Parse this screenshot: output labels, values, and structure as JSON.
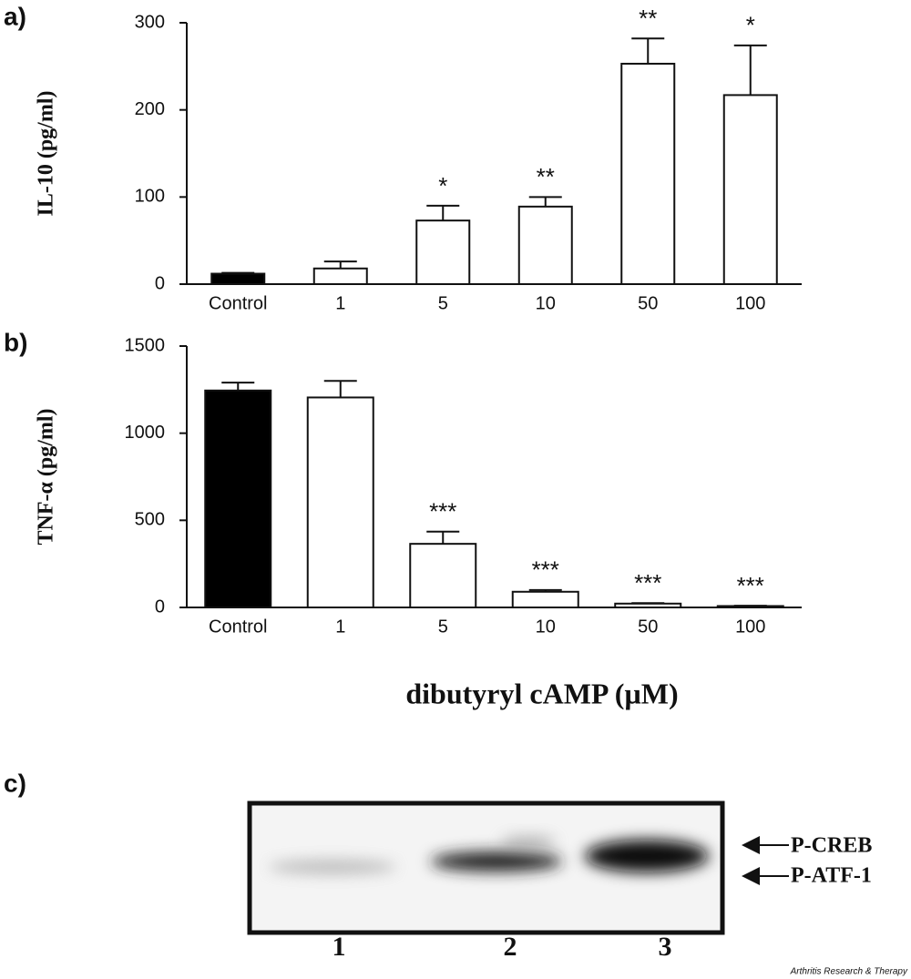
{
  "chart_data": [
    {
      "type": "bar",
      "panel_label": "a)",
      "ylabel": "IL-10 (pg/ml)",
      "categories": [
        "Control",
        "1",
        "5",
        "10",
        "50",
        "100"
      ],
      "values": [
        12,
        18,
        73,
        89,
        253,
        217
      ],
      "errors": [
        1,
        8,
        17,
        11,
        29,
        57
      ],
      "colors": [
        "#000000",
        "#ffffff",
        "#ffffff",
        "#ffffff",
        "#ffffff",
        "#ffffff"
      ],
      "annotations": [
        null,
        null,
        "*",
        "**",
        "**",
        "*"
      ],
      "ylim": [
        0,
        300
      ],
      "yticks": [
        0,
        100,
        200,
        300
      ]
    },
    {
      "type": "bar",
      "panel_label": "b)",
      "ylabel": "TNF-α (pg/ml)",
      "xlabel": "dibutyryl cAMP (µM)",
      "categories": [
        "Control",
        "1",
        "5",
        "10",
        "50",
        "100"
      ],
      "values": [
        1245,
        1205,
        365,
        90,
        22,
        8
      ],
      "errors": [
        45,
        95,
        70,
        10,
        3,
        2
      ],
      "colors": [
        "#000000",
        "#ffffff",
        "#ffffff",
        "#ffffff",
        "#ffffff",
        "#ffffff"
      ],
      "annotations": [
        null,
        null,
        "***",
        "***",
        "***",
        "***"
      ],
      "ylim": [
        0,
        1500
      ],
      "yticks": [
        0,
        500,
        1000,
        1500
      ]
    }
  ],
  "blot": {
    "panel_label": "c)",
    "bands": [
      "P-CREB",
      "P-ATF-1"
    ],
    "lanes": [
      "1",
      "2",
      "3"
    ]
  },
  "source": "Arthritis Research & Therapy"
}
